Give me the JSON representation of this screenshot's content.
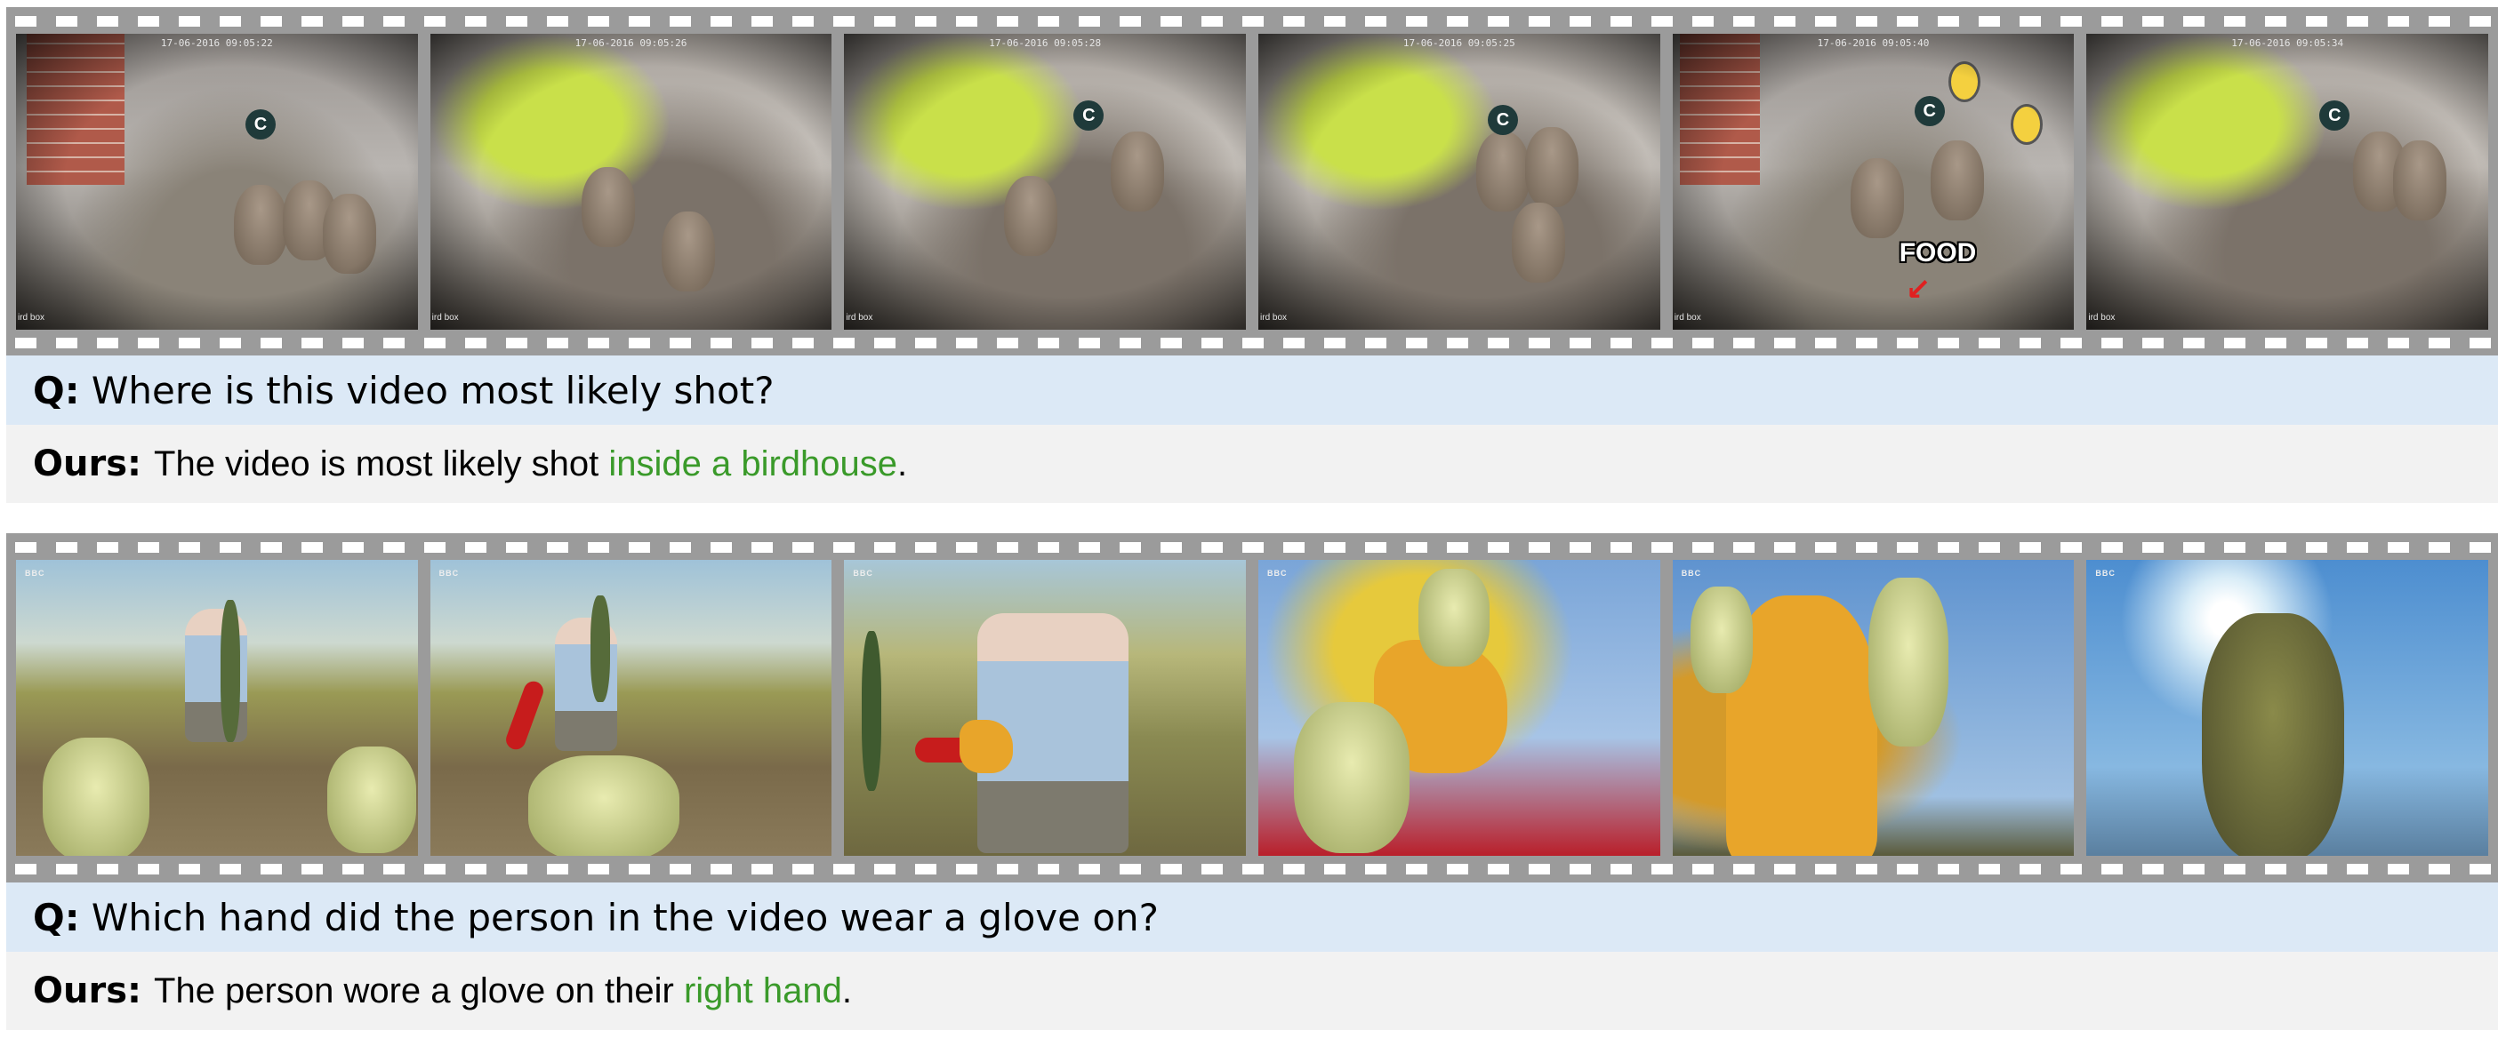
{
  "examples": [
    {
      "frames": [
        {
          "timestamp": "17-06-2016 09:05:22",
          "corner": "ird box"
        },
        {
          "timestamp": "17-06-2016 09:05:26",
          "corner": "ird box"
        },
        {
          "timestamp": "17-06-2016 09:05:28",
          "corner": "ird box"
        },
        {
          "timestamp": "17-06-2016 09:05:25",
          "corner": "ird box"
        },
        {
          "timestamp": "17-06-2016 09:05:40",
          "corner": "ird box",
          "overlay": "FOOD"
        },
        {
          "timestamp": "17-06-2016 09:05:34",
          "corner": "ird box"
        }
      ],
      "question_prefix": "Q:",
      "question": "Where is this video most likely shot?",
      "answer_label": "Ours:",
      "answer_before": "The video is most likely shot",
      "answer_highlight": "inside a birdhouse",
      "answer_after": "."
    },
    {
      "frames": [
        {
          "watermark": "BBC"
        },
        {
          "watermark": "BBC"
        },
        {
          "watermark": "BBC"
        },
        {
          "watermark": "BBC"
        },
        {
          "watermark": "BBC"
        },
        {
          "watermark": "BBC"
        }
      ],
      "question_prefix": "Q:",
      "question": "Which hand did the person in the video wear a glove on?",
      "answer_label": "Ours:",
      "answer_before": "The person wore a glove on their",
      "answer_highlight": "right hand",
      "answer_after": "."
    }
  ],
  "colors": {
    "highlight": "#3a9a2a",
    "question_bg": "#dce9f6",
    "answer_bg": "#f2f2f2",
    "film": "#9b9b9b"
  }
}
